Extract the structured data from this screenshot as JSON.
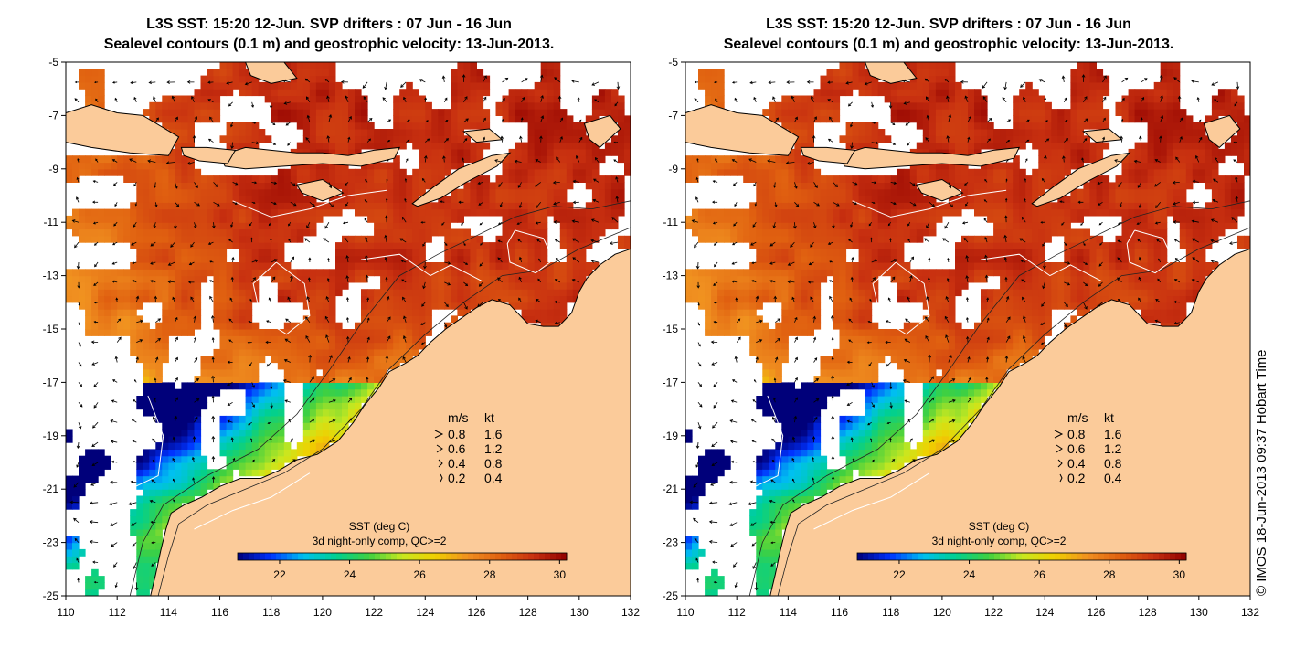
{
  "panels": [
    {
      "title_line1": "L3S SST: 15:20 12-Jun. SVP drifters : 07 Jun - 16 Jun",
      "title_line2": "Sealevel contours (0.1 m) and geostrophic velocity: 13-Jun-2013."
    },
    {
      "title_line1": "L3S SST: 15:20 12-Jun. SVP drifters : 07 Jun - 16 Jun",
      "title_line2": "Sealevel contours (0.1 m) and geostrophic velocity: 13-Jun-2013."
    }
  ],
  "axes": {
    "lon_range": [
      110,
      132
    ],
    "lat_range": [
      -25,
      -5
    ],
    "lon_ticks": [
      "110",
      "112",
      "114",
      "116",
      "118",
      "120",
      "122",
      "124",
      "126",
      "128",
      "130",
      "132"
    ],
    "lat_ticks": [
      "-5",
      "-7",
      "-9",
      "-11",
      "-13",
      "-15",
      "-17",
      "-19",
      "-21",
      "-23",
      "-25"
    ]
  },
  "velocity_legend": {
    "header_ms": "m/s",
    "header_kt": "kt",
    "rows": [
      {
        "ms": "0.8",
        "kt": "1.6"
      },
      {
        "ms": "0.6",
        "kt": "1.2"
      },
      {
        "ms": "0.4",
        "kt": "0.8"
      },
      {
        "ms": "0.2",
        "kt": "0.4"
      }
    ]
  },
  "colorbar": {
    "label1": "SST (deg C)",
    "label2": "3d night-only comp, QC>=2",
    "range": [
      20.8,
      30.2
    ],
    "ticks": [
      "22",
      "24",
      "26",
      "28",
      "30"
    ],
    "colors": [
      "#00007a",
      "#0032ff",
      "#00c0f0",
      "#00d090",
      "#40d040",
      "#c8e820",
      "#f0d000",
      "#f09020",
      "#e06010",
      "#c83010",
      "#900000"
    ]
  },
  "credit": "© IMOS 18-Jun-2013 09:37 Hobart Time",
  "colors": {
    "land": "#fbcb9a",
    "no_data": "#ffffff"
  }
}
